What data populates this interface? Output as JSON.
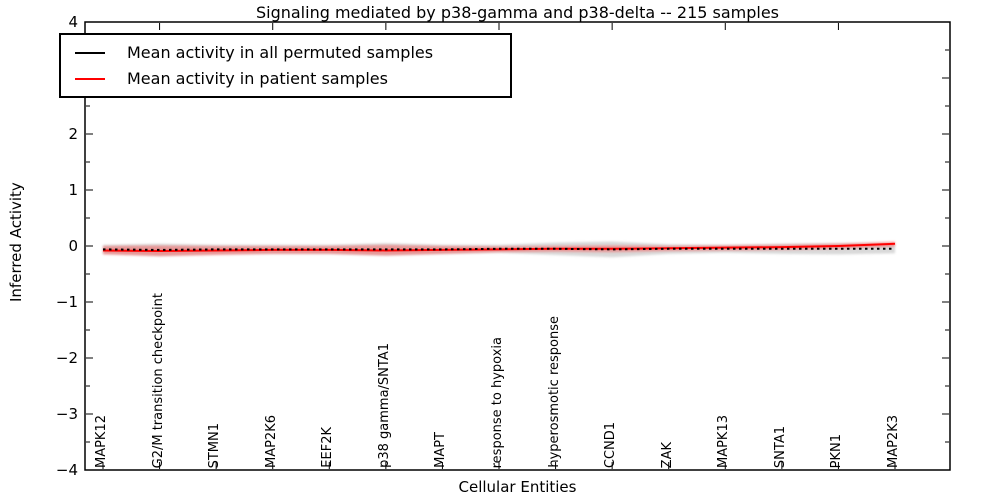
{
  "title": "Signaling mediated by p38-gamma and p38-delta -- 215 samples",
  "legend": {
    "items": [
      {
        "label": "Mean activity in all permuted samples",
        "color": "#000000"
      },
      {
        "label": "Mean activity in patient samples",
        "color": "#ff0000"
      }
    ]
  },
  "axes": {
    "xlabel": "Cellular Entities",
    "ylabel": "Inferred Activity",
    "ytick_labels": [
      "4",
      "3",
      "2",
      "1",
      "0",
      "−1",
      "−2",
      "−3",
      "−4"
    ],
    "ytick_values": [
      4,
      3,
      2,
      1,
      0,
      -1,
      -2,
      -3,
      -4
    ],
    "ytick_minor_values": [
      3.5,
      2.5,
      1.5,
      0.5,
      -0.5,
      -1.5,
      -2.5,
      -3.5
    ],
    "ylim": [
      -4,
      4
    ]
  },
  "chart_data": {
    "type": "line",
    "title": "Signaling mediated by p38-gamma and p38-delta -- 215 samples",
    "xlabel": "Cellular Entities",
    "ylabel": "Inferred Activity",
    "ylim": [
      -4,
      4
    ],
    "grid": false,
    "legend_position": "upper left",
    "categories": [
      "MAPK12",
      "G2/M transition checkpoint",
      "STMN1",
      "MAP2K6",
      "EEF2K",
      "p38 gamma/SNTA1",
      "MAPT",
      "response to hypoxia",
      "hyperosmotic response",
      "CCND1",
      "ZAK",
      "MAPK13",
      "SNTA1",
      "PKN1",
      "MAP2K3"
    ],
    "series": [
      {
        "name": "Mean activity in all permuted samples",
        "color": "#000000",
        "line_style": "dashed",
        "values": [
          -0.06,
          -0.07,
          -0.06,
          -0.06,
          -0.06,
          -0.06,
          -0.06,
          -0.05,
          -0.05,
          -0.06,
          -0.05,
          -0.05,
          -0.05,
          -0.05,
          -0.05
        ]
      },
      {
        "name": "Mean activity in patient samples",
        "color": "#ff0000",
        "line_style": "solid",
        "values": [
          -0.08,
          -0.09,
          -0.08,
          -0.07,
          -0.07,
          -0.08,
          -0.07,
          -0.06,
          -0.05,
          -0.05,
          -0.04,
          -0.03,
          -0.02,
          0.0,
          0.04
        ]
      }
    ],
    "bands": [
      {
        "name": "permuted samples std band",
        "color": "#8a8a8a",
        "opacity": 0.32,
        "upper": [
          0.02,
          0.04,
          0.02,
          0.02,
          0.02,
          0.05,
          0.02,
          0.02,
          0.06,
          0.08,
          0.03,
          0.02,
          0.04,
          0.05,
          0.05
        ],
        "lower": [
          -0.14,
          -0.18,
          -0.15,
          -0.14,
          -0.14,
          -0.17,
          -0.14,
          -0.12,
          -0.16,
          -0.2,
          -0.14,
          -0.12,
          -0.14,
          -0.15,
          -0.13
        ]
      },
      {
        "name": "patient samples std band",
        "color": "#ff2a2a",
        "opacity": 0.38,
        "upper": [
          0.0,
          0.01,
          0.0,
          0.0,
          0.0,
          0.02,
          0.0,
          -0.01,
          0.0,
          0.01,
          0.0,
          0.01,
          0.02,
          0.04,
          0.08
        ],
        "lower": [
          -0.15,
          -0.18,
          -0.16,
          -0.14,
          -0.14,
          -0.17,
          -0.14,
          -0.11,
          -0.1,
          -0.11,
          -0.09,
          -0.08,
          -0.07,
          -0.05,
          -0.01
        ]
      }
    ]
  }
}
